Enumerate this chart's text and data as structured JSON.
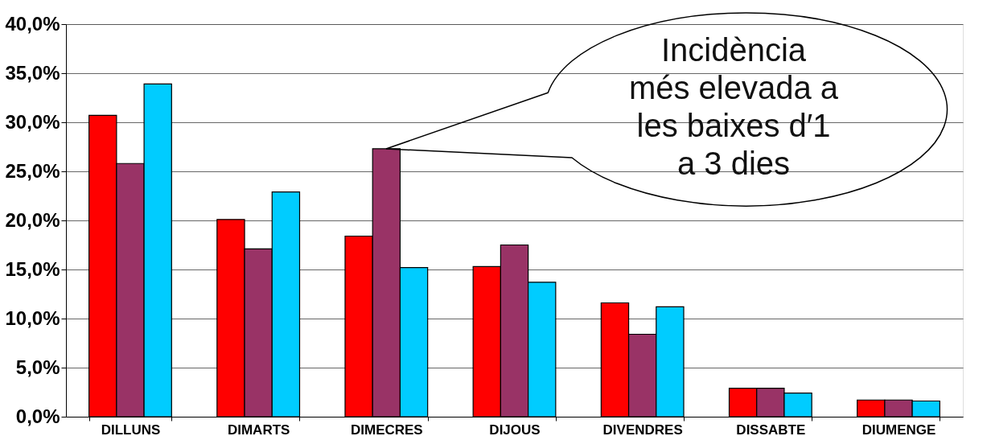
{
  "chart_data": {
    "type": "bar",
    "categories": [
      "DILLUNS",
      "DIMARTS",
      "DIMECRES",
      "DIJOUS",
      "DIVENDRES",
      "DISSABTE",
      "DIUMENGE"
    ],
    "series": [
      {
        "color": "#ff0000",
        "values": [
          30.7,
          20.1,
          18.4,
          15.3,
          11.6,
          2.9,
          1.7
        ]
      },
      {
        "color": "#993366",
        "values": [
          25.8,
          17.1,
          27.3,
          17.5,
          8.4,
          2.9,
          1.7
        ]
      },
      {
        "color": "#00ccff",
        "values": [
          33.9,
          22.9,
          15.2,
          13.7,
          11.2,
          2.4,
          1.6
        ]
      }
    ],
    "ylim": [
      0,
      40
    ],
    "yticks": [
      {
        "value": 0,
        "label": "0,0%"
      },
      {
        "value": 5,
        "label": "5,0%"
      },
      {
        "value": 10,
        "label": "10,0%"
      },
      {
        "value": 15,
        "label": "15,0%"
      },
      {
        "value": 20,
        "label": "20,0%"
      },
      {
        "value": 25,
        "label": "25,0%"
      },
      {
        "value": 30,
        "label": "30,0%"
      },
      {
        "value": 35,
        "label": "35,0%"
      },
      {
        "value": 40,
        "label": "40,0%"
      }
    ],
    "grid": "y",
    "legend": false,
    "annotations": [
      "Incidència\nmés elevada a\nles baixes d′1\na 3 dies"
    ]
  }
}
